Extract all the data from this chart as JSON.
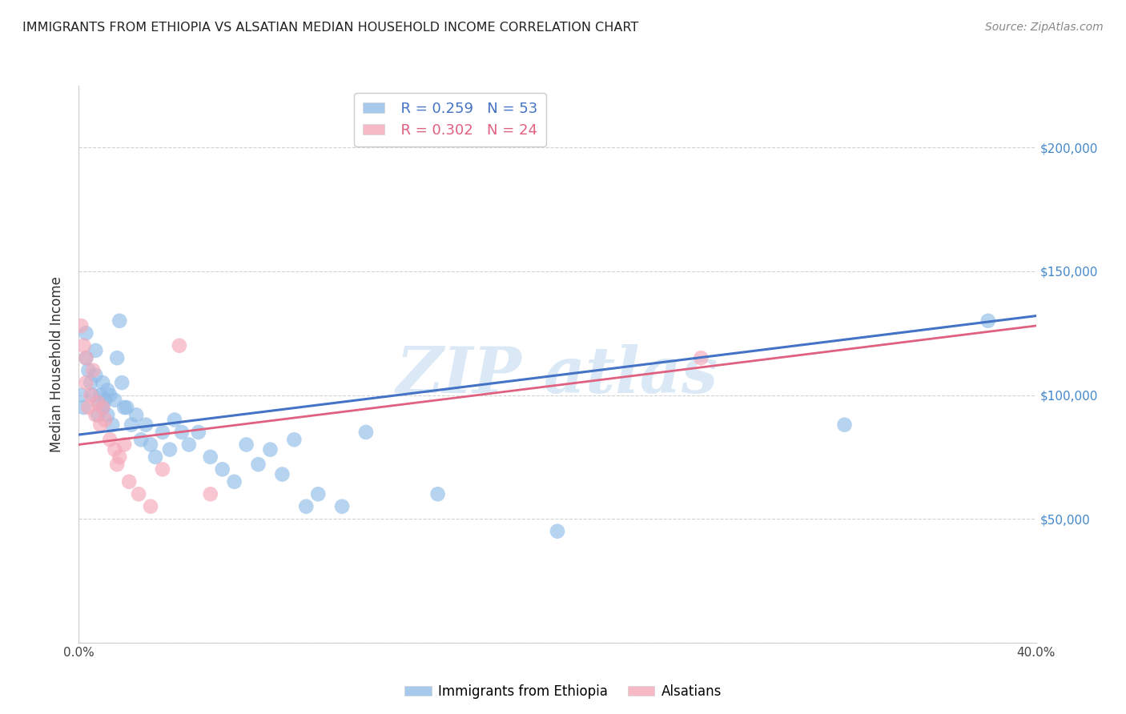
{
  "title": "IMMIGRANTS FROM ETHIOPIA VS ALSATIAN MEDIAN HOUSEHOLD INCOME CORRELATION CHART",
  "source": "Source: ZipAtlas.com",
  "ylabel": "Median Household Income",
  "xlim": [
    0.0,
    0.4
  ],
  "ylim": [
    0,
    225000
  ],
  "yticks": [
    0,
    50000,
    100000,
    150000,
    200000
  ],
  "ytick_labels": [
    "",
    "$50,000",
    "$100,000",
    "$150,000",
    "$200,000"
  ],
  "xticks": [
    0.0,
    0.05,
    0.1,
    0.15,
    0.2,
    0.25,
    0.3,
    0.35,
    0.4
  ],
  "xtick_labels": [
    "0.0%",
    "",
    "",
    "",
    "",
    "",
    "",
    "",
    "40.0%"
  ],
  "legend1_r": "0.259",
  "legend1_n": "53",
  "legend2_r": "0.302",
  "legend2_n": "24",
  "blue_color": "#90bce8",
  "pink_color": "#f4a8b8",
  "line_blue": "#4472c4",
  "line_pink": "#e06080",
  "blue_points_x": [
    0.001,
    0.002,
    0.003,
    0.003,
    0.004,
    0.005,
    0.006,
    0.007,
    0.007,
    0.008,
    0.008,
    0.009,
    0.01,
    0.01,
    0.011,
    0.012,
    0.012,
    0.013,
    0.014,
    0.015,
    0.016,
    0.017,
    0.018,
    0.019,
    0.02,
    0.022,
    0.024,
    0.026,
    0.028,
    0.03,
    0.032,
    0.035,
    0.038,
    0.04,
    0.043,
    0.046,
    0.05,
    0.055,
    0.06,
    0.065,
    0.07,
    0.075,
    0.08,
    0.085,
    0.09,
    0.095,
    0.1,
    0.11,
    0.12,
    0.15,
    0.2,
    0.32,
    0.38
  ],
  "blue_points_y": [
    100000,
    95000,
    115000,
    125000,
    110000,
    105000,
    100000,
    118000,
    108000,
    97000,
    92000,
    100000,
    105000,
    95000,
    98000,
    102000,
    92000,
    100000,
    88000,
    98000,
    115000,
    130000,
    105000,
    95000,
    95000,
    88000,
    92000,
    82000,
    88000,
    80000,
    75000,
    85000,
    78000,
    90000,
    85000,
    80000,
    85000,
    75000,
    70000,
    65000,
    80000,
    72000,
    78000,
    68000,
    82000,
    55000,
    60000,
    55000,
    85000,
    60000,
    45000,
    88000,
    130000
  ],
  "pink_points_x": [
    0.001,
    0.002,
    0.003,
    0.003,
    0.004,
    0.005,
    0.006,
    0.007,
    0.008,
    0.009,
    0.01,
    0.011,
    0.013,
    0.015,
    0.016,
    0.017,
    0.019,
    0.021,
    0.025,
    0.03,
    0.035,
    0.042,
    0.055,
    0.26
  ],
  "pink_points_y": [
    128000,
    120000,
    115000,
    105000,
    95000,
    100000,
    110000,
    92000,
    97000,
    88000,
    95000,
    90000,
    82000,
    78000,
    72000,
    75000,
    80000,
    65000,
    60000,
    55000,
    70000,
    120000,
    60000,
    115000
  ],
  "blue_line_x": [
    0.0,
    0.4
  ],
  "blue_line_y": [
    84000,
    132000
  ],
  "pink_line_x": [
    0.0,
    0.4
  ],
  "pink_line_y": [
    80000,
    128000
  ],
  "bg_color": "#ffffff",
  "grid_color": "#cccccc",
  "title_color": "#222222",
  "axis_label_color": "#333333",
  "right_tick_color": "#4488cc"
}
